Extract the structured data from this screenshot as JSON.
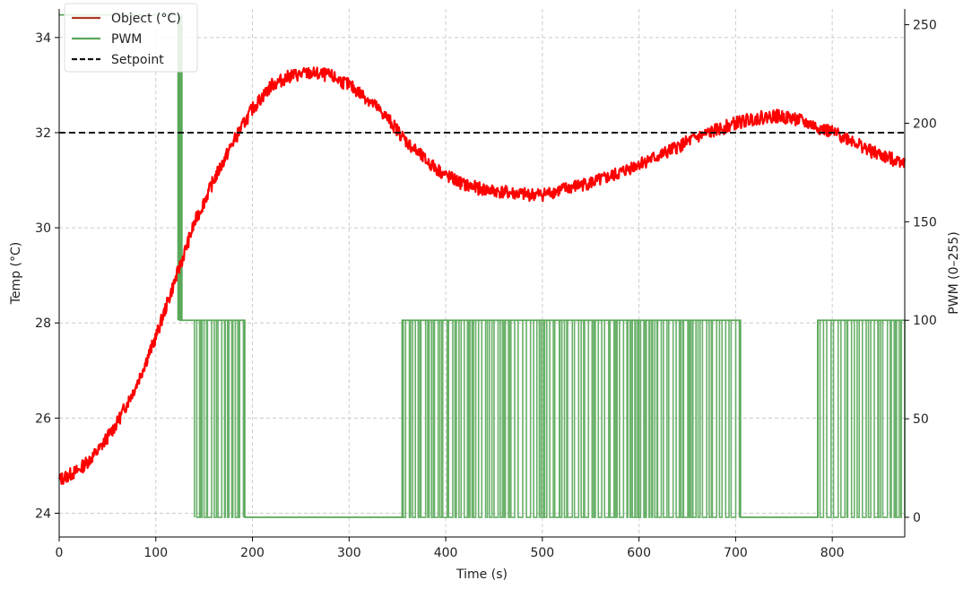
{
  "chart_data": {
    "type": "line",
    "title": "",
    "xlabel": "Time (s)",
    "ylabel_left": "Temp (°C)",
    "ylabel_right": "PWM (0–255)",
    "xlim": [
      0,
      875
    ],
    "ylim_left": [
      23.5,
      34.6
    ],
    "ylim_right": [
      -10,
      258
    ],
    "x_ticks": [
      0,
      100,
      200,
      300,
      400,
      500,
      600,
      700,
      800
    ],
    "y_ticks_left": [
      24,
      26,
      28,
      30,
      32,
      34
    ],
    "y_ticks_right": [
      0,
      50,
      100,
      150,
      200,
      250
    ],
    "grid": true,
    "legend_position": "top-left",
    "legend": [
      {
        "label": "Object (°C)",
        "color": "#a83a1e",
        "style": "solid"
      },
      {
        "label": "PWM",
        "color": "#5aa85a",
        "style": "solid"
      },
      {
        "label": "Setpoint",
        "color": "#111111",
        "style": "dashed"
      }
    ],
    "setpoint": 32,
    "series": [
      {
        "name": "Object (°C)",
        "color": "#ff0000",
        "axis": "left",
        "x": [
          0,
          20,
          40,
          60,
          80,
          100,
          110,
          120,
          130,
          140,
          160,
          180,
          200,
          220,
          240,
          260,
          280,
          300,
          320,
          340,
          360,
          380,
          400,
          420,
          440,
          460,
          480,
          500,
          520,
          540,
          560,
          580,
          600,
          620,
          640,
          660,
          680,
          700,
          720,
          740,
          760,
          780,
          800,
          820,
          840,
          860,
          875
        ],
        "y": [
          24.7,
          24.9,
          25.3,
          25.9,
          26.7,
          27.7,
          28.3,
          28.9,
          29.5,
          30.1,
          31.0,
          31.8,
          32.5,
          33.0,
          33.2,
          33.25,
          33.2,
          33.0,
          32.7,
          32.3,
          31.8,
          31.4,
          31.1,
          30.9,
          30.8,
          30.75,
          30.7,
          30.7,
          30.8,
          30.9,
          31.0,
          31.15,
          31.35,
          31.5,
          31.7,
          31.9,
          32.05,
          32.2,
          32.3,
          32.35,
          32.3,
          32.15,
          32.0,
          31.85,
          31.6,
          31.45,
          31.4
        ]
      },
      {
        "name": "PWM",
        "color": "#5aa85a",
        "axis": "right",
        "x": [
          0,
          125,
          125,
          140,
          140,
          192,
          192,
          355,
          355,
          705,
          705,
          785,
          785,
          875
        ],
        "y": [
          255,
          255,
          100,
          100,
          100,
          100,
          0,
          0,
          100,
          100,
          0,
          0,
          100,
          100
        ]
      }
    ],
    "pwm_switching_bands": [
      [
        140,
        192
      ],
      [
        355,
        705
      ],
      [
        785,
        875
      ]
    ]
  }
}
